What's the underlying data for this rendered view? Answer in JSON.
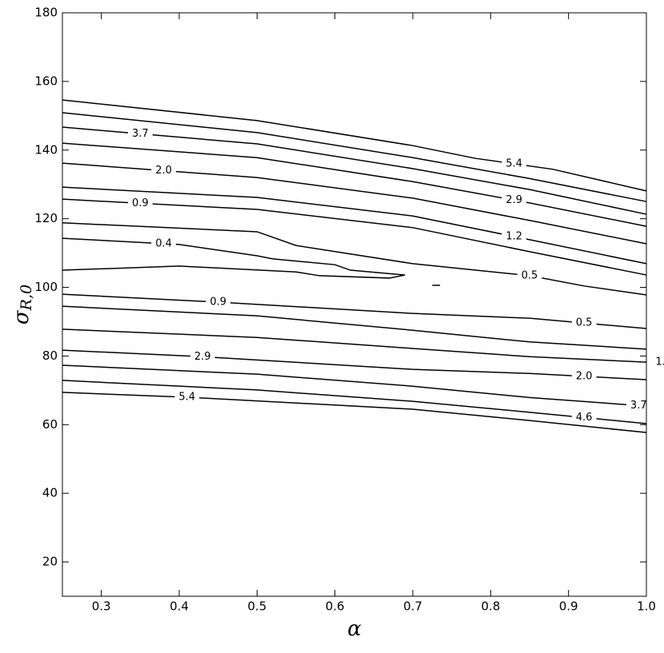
{
  "chart_data": {
    "type": "contour",
    "xlabel": "α",
    "ylabel": {
      "text": "σ",
      "subscript": "R,0"
    },
    "xlim": [
      0.25,
      1.0
    ],
    "ylim": [
      10,
      180
    ],
    "xticks": [
      0.3,
      0.4,
      0.5,
      0.6,
      0.7,
      0.8,
      0.9,
      {
        "value": 1.0,
        "label": "1.0"
      }
    ],
    "yticks": [
      20,
      40,
      60,
      80,
      100,
      120,
      140,
      160,
      180
    ],
    "color": "#000000",
    "contours": [
      {
        "x": [
          0.25,
          0.5,
          0.7,
          0.78,
          0.88,
          1.0
        ],
        "y": [
          154.6,
          148.6,
          141.3,
          137.6,
          134.4,
          128.1
        ],
        "labels": [
          {
            "text": "5.4",
            "x": 0.83
          }
        ]
      },
      {
        "x": [
          0.25,
          0.5,
          0.7,
          0.85,
          1.0
        ],
        "y": [
          150.9,
          145.1,
          137.8,
          131.7,
          125.0
        ],
        "labels": []
      },
      {
        "x": [
          0.25,
          0.5,
          0.7,
          0.85,
          1.0
        ],
        "y": [
          146.7,
          141.8,
          134.6,
          128.5,
          121.3
        ],
        "labels": [
          {
            "text": "3.7",
            "x": 0.35
          }
        ]
      },
      {
        "x": [
          0.25,
          0.5,
          0.7,
          0.85,
          1.0
        ],
        "y": [
          142.0,
          137.8,
          130.8,
          124.6,
          117.8
        ],
        "labels": [
          {
            "text": "2.9",
            "x": 0.83
          }
        ]
      },
      {
        "x": [
          0.25,
          0.5,
          0.7,
          0.85,
          1.0
        ],
        "y": [
          136.2,
          132.0,
          126.0,
          119.5,
          112.7
        ],
        "labels": [
          {
            "text": "2.0",
            "x": 0.38
          }
        ]
      },
      {
        "x": [
          0.25,
          0.5,
          0.7,
          0.85,
          1.0
        ],
        "y": [
          129.2,
          126.2,
          120.8,
          113.9,
          106.9
        ],
        "labels": [
          {
            "text": "1.2",
            "x": 0.83
          }
        ]
      },
      {
        "x": [
          0.25,
          0.5,
          0.7,
          0.85,
          1.0
        ],
        "y": [
          125.7,
          122.7,
          117.4,
          110.4,
          103.6
        ],
        "labels": [
          {
            "text": "0.9",
            "x": 0.35
          }
        ]
      },
      {
        "x": [
          0.25,
          0.5,
          0.55,
          0.7,
          0.85,
          0.92,
          1.0
        ],
        "y": [
          118.8,
          116.2,
          112.2,
          106.9,
          103.4,
          100.4,
          97.8
        ],
        "labels": [
          {
            "text": "0.5",
            "x": 0.85
          }
        ]
      },
      {
        "x": [
          0.25,
          0.4,
          0.5,
          0.52,
          0.6,
          0.62,
          0.69,
          0.67,
          0.58,
          0.55,
          0.4,
          0.25
        ],
        "y": [
          114.3,
          112.5,
          109.2,
          108.3,
          106.6,
          105.0,
          103.6,
          102.7,
          103.4,
          104.5,
          106.2,
          105.0
        ],
        "labels": [
          {
            "text": "0.4",
            "x": 0.38
          }
        ]
      },
      {
        "x": [
          0.725,
          0.735
        ],
        "y": [
          100.6,
          100.6
        ],
        "labels": []
      },
      {
        "x": [
          0.25,
          0.45,
          0.7,
          0.85,
          1.0
        ],
        "y": [
          98.0,
          95.7,
          92.4,
          91.0,
          88.0
        ],
        "labels": [
          {
            "text": "0.9",
            "x": 0.45
          },
          {
            "text": "0.5",
            "x": 0.92
          }
        ]
      },
      {
        "x": [
          0.25,
          0.5,
          0.7,
          0.85,
          1.0
        ],
        "y": [
          94.5,
          91.7,
          87.5,
          84.1,
          82.0
        ],
        "labels": []
      },
      {
        "x": [
          0.25,
          0.5,
          0.7,
          0.85,
          1.0
        ],
        "y": [
          87.8,
          85.4,
          82.2,
          79.8,
          78.2
        ],
        "labels": [
          {
            "text": "1.",
            "x": 1.018
          }
        ]
      },
      {
        "x": [
          0.25,
          0.43,
          0.7,
          0.85,
          1.0
        ],
        "y": [
          81.7,
          79.8,
          76.1,
          74.9,
          73.1
        ],
        "labels": [
          {
            "text": "2.9",
            "x": 0.43
          },
          {
            "text": "2.0",
            "x": 0.92
          }
        ]
      },
      {
        "x": [
          0.25,
          0.5,
          0.7,
          0.85,
          1.0
        ],
        "y": [
          77.3,
          74.7,
          71.2,
          67.9,
          65.4
        ],
        "labels": [
          {
            "text": "3.7",
            "x": 0.99
          }
        ]
      },
      {
        "x": [
          0.25,
          0.5,
          0.7,
          0.85,
          1.0
        ],
        "y": [
          72.9,
          70.1,
          66.8,
          63.6,
          60.3
        ],
        "labels": [
          {
            "text": "4.6",
            "x": 0.92
          }
        ]
      },
      {
        "x": [
          0.25,
          0.41,
          0.7,
          0.85,
          1.0
        ],
        "y": [
          69.4,
          68.0,
          64.5,
          61.2,
          57.7
        ],
        "labels": [
          {
            "text": "5.4",
            "x": 0.41
          }
        ]
      }
    ]
  }
}
